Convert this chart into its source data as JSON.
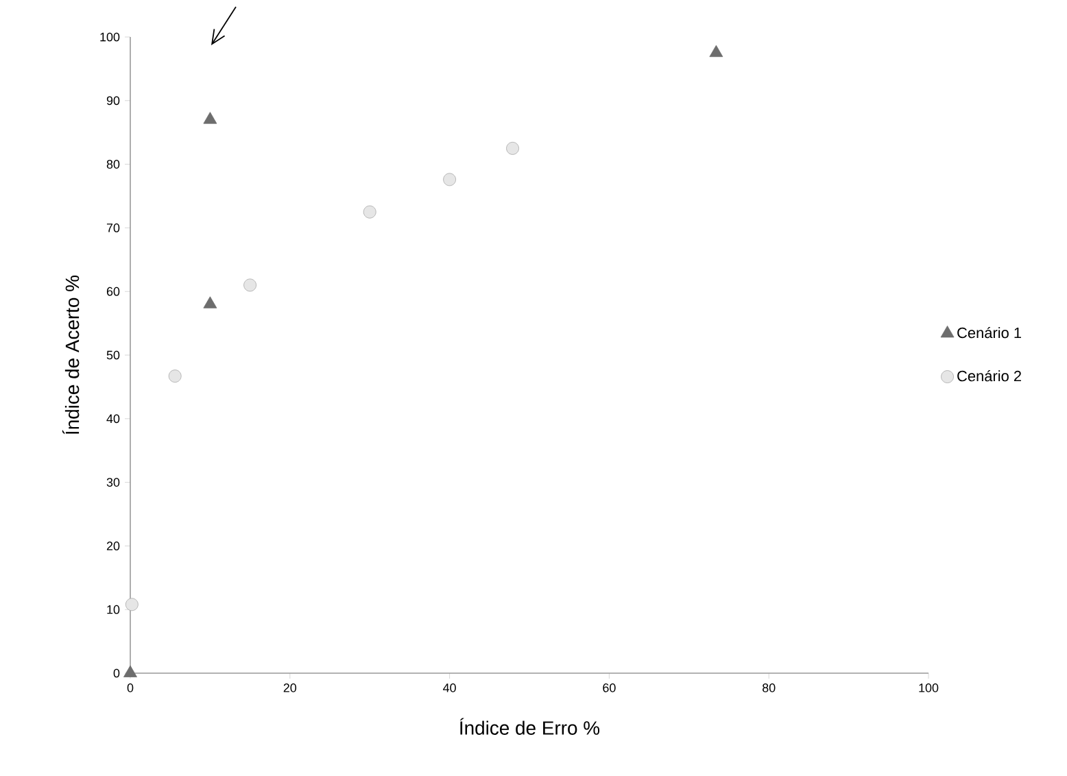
{
  "chart_data": {
    "type": "scatter",
    "xlabel": "Índice de Erro %",
    "ylabel": "Índice de Acerto %",
    "xlim": [
      0,
      100
    ],
    "ylim": [
      0,
      100
    ],
    "xticks": [
      0,
      20,
      40,
      60,
      80,
      100
    ],
    "yticks": [
      0,
      10,
      20,
      30,
      40,
      50,
      60,
      70,
      80,
      90,
      100
    ],
    "grid": false,
    "legend": "right",
    "series": [
      {
        "name": "Cenário 1",
        "color": "#6d6d6d",
        "marker": "triangle",
        "x": [
          0,
          10,
          10,
          73.4
        ],
        "values": [
          0,
          58,
          87,
          97.5
        ]
      },
      {
        "name": "Cenário 2",
        "color": "#e6e6e6",
        "marker": "circle",
        "x": [
          0.2,
          5.6,
          15,
          30,
          40,
          47.9
        ],
        "values": [
          10.8,
          46.7,
          61,
          72.5,
          77.6,
          82.5
        ]
      }
    ]
  }
}
